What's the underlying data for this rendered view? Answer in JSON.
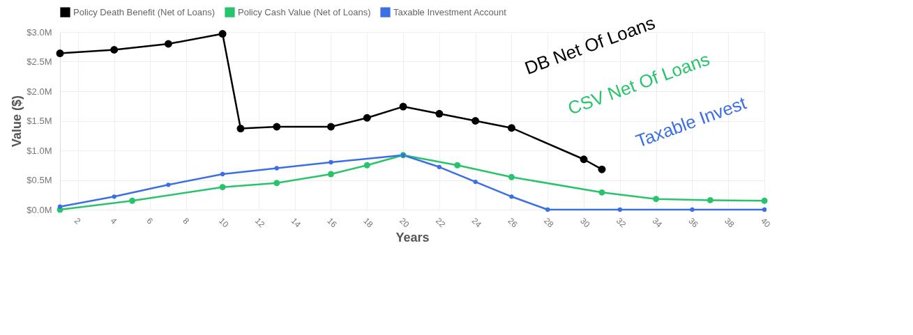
{
  "chart_data": {
    "type": "line",
    "xlabel": "Years",
    "ylabel": "Value ($)",
    "xlim": [
      1,
      40
    ],
    "xticks": [
      2,
      4,
      6,
      8,
      10,
      12,
      14,
      16,
      18,
      20,
      22,
      24,
      26,
      28,
      30,
      32,
      34,
      36,
      38,
      40
    ],
    "ylim": [
      0,
      3
    ],
    "yticks": [
      {
        "value": 0,
        "label": "$0.0M"
      },
      {
        "value": 0.5,
        "label": "$0.5M"
      },
      {
        "value": 1,
        "label": "$1.0M"
      },
      {
        "value": 1.5,
        "label": "$1.5M"
      },
      {
        "value": 2,
        "label": "$2.0M"
      },
      {
        "value": 2.5,
        "label": "$2.5M"
      },
      {
        "value": 3,
        "label": "$3.0M"
      }
    ],
    "grid": true,
    "legend": "top",
    "marker": "circle",
    "line_style": "solid",
    "series": [
      {
        "name": "Policy Death Benefit (Net of Loans)",
        "color": "#000000",
        "x": [
          1,
          4,
          7,
          10,
          11,
          13,
          16,
          18,
          20,
          22,
          24,
          26,
          30,
          31
        ],
        "values": [
          2.64,
          2.7,
          2.8,
          2.97,
          1.37,
          1.4,
          1.4,
          1.55,
          1.74,
          1.62,
          1.5,
          1.38,
          0.85,
          0.68
        ]
      },
      {
        "name": "Policy Cash Value (Net of Loans)",
        "color": "#27c46b",
        "x": [
          1,
          5,
          10,
          13,
          16,
          18,
          20,
          23,
          26,
          31,
          34,
          37,
          40
        ],
        "values": [
          0.0,
          0.15,
          0.38,
          0.45,
          0.6,
          0.75,
          0.92,
          0.75,
          0.55,
          0.29,
          0.18,
          0.16,
          0.15
        ]
      },
      {
        "name": "Taxable Investment Account",
        "color": "#3b6fe3",
        "x": [
          1,
          4,
          7,
          10,
          13,
          16,
          20,
          22,
          24,
          26,
          28,
          32,
          36,
          40
        ],
        "values": [
          0.05,
          0.22,
          0.42,
          0.6,
          0.7,
          0.8,
          0.92,
          0.72,
          0.47,
          0.22,
          0.0,
          0.0,
          0.0,
          0.0
        ]
      }
    ],
    "annotations": [
      "DB Net Of Loans",
      "CSV Net Of Loans",
      "Taxable Invest"
    ]
  }
}
